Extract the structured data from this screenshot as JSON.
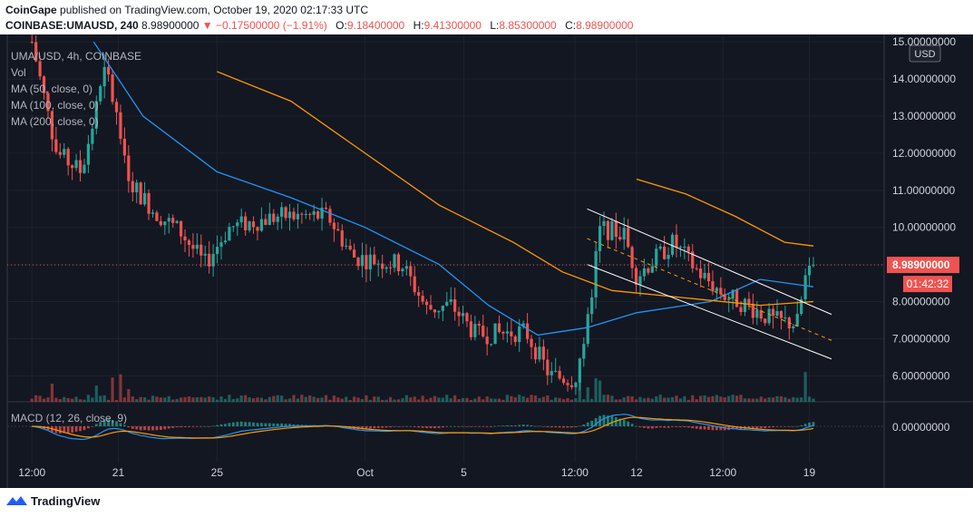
{
  "header": {
    "publisher": "CoinGape",
    "published_text": "published on TradingView.com, October 19, 2020 02:17:33 UTC",
    "symbol_line": "COINBASE:UMAUSD, 240",
    "last_price": "8.98900000",
    "change_arrow": "▼",
    "change": "−0.17500000 (−1.91%)",
    "ohlc": {
      "o_label": "O:",
      "o": "9.18400000",
      "h_label": "H:",
      "h": "9.41300000",
      "l_label": "L:",
      "l": "8.85300000",
      "c_label": "C:",
      "c": "8.98900000"
    }
  },
  "legend": {
    "symbol": "UMA/USD, 4h, COINBASE",
    "vol": "Vol",
    "ma50": "MA (50, close, 0)",
    "ma100": "MA (100, close, 0)",
    "ma200": "MA (200, close, 0)",
    "macd": "MACD (12, 26, close, 9)"
  },
  "price_axis": {
    "currency": "USD",
    "last_price_label": "8.98900000",
    "countdown": "01:42:32",
    "macd_zero_label": "0.00000000"
  },
  "footer": {
    "brand": "TradingView"
  },
  "colors": {
    "background": "#131722",
    "up": "#26a69a",
    "down": "#ef5350",
    "ma50": "#2196f3",
    "ma100": "#ff9800",
    "channel": "#ffffff",
    "signal": "#ff9800",
    "macd": "#2196f3"
  },
  "chart_data": {
    "type": "candlestick",
    "symbol": "UMA/USD",
    "timeframe": "4h",
    "exchange": "COINBASE",
    "x_tick_labels": [
      "12:00",
      "21",
      "25",
      "Oct",
      "5",
      "12:00",
      "12",
      "12:00",
      "19"
    ],
    "y_tick_labels": [
      "6.00000000",
      "7.00000000",
      "8.00000000",
      "9.00000000",
      "10.00000000",
      "11.00000000",
      "12.00000000",
      "13.00000000",
      "14.00000000",
      "15.00000000"
    ],
    "ylim": [
      5.3,
      15.2
    ],
    "last_price": 8.989,
    "approximate_close_path": [
      {
        "date": "2020-09-17 12:00",
        "close": 15.0
      },
      {
        "date": "2020-09-18 12:00",
        "close": 12.0
      },
      {
        "date": "2020-09-19 12:00",
        "close": 11.5
      },
      {
        "date": "2020-09-20 12:00",
        "close": 14.3
      },
      {
        "date": "2020-09-21 12:00",
        "close": 11.2
      },
      {
        "date": "2020-09-22 12:00",
        "close": 10.4
      },
      {
        "date": "2020-09-23 12:00",
        "close": 9.9
      },
      {
        "date": "2020-09-24 12:00",
        "close": 9.0
      },
      {
        "date": "2020-09-25 12:00",
        "close": 10.0
      },
      {
        "date": "2020-09-27 12:00",
        "close": 10.3
      },
      {
        "date": "2020-09-29 12:00",
        "close": 10.3
      },
      {
        "date": "2020-09-30 12:00",
        "close": 9.2
      },
      {
        "date": "2020-10-02 12:00",
        "close": 9.0
      },
      {
        "date": "2020-10-03 12:00",
        "close": 7.8
      },
      {
        "date": "2020-10-04 12:00",
        "close": 7.9
      },
      {
        "date": "2020-10-05 12:00",
        "close": 7.1
      },
      {
        "date": "2020-10-07 12:00",
        "close": 7.2
      },
      {
        "date": "2020-10-08 12:00",
        "close": 6.0
      },
      {
        "date": "2020-10-09 12:00",
        "close": 5.9
      },
      {
        "date": "2020-10-10 00:00",
        "close": 7.3
      },
      {
        "date": "2020-10-10 12:00",
        "close": 10.0
      },
      {
        "date": "2020-10-11 12:00",
        "close": 9.8
      },
      {
        "date": "2020-10-12 00:00",
        "close": 8.7
      },
      {
        "date": "2020-10-13 12:00",
        "close": 9.6
      },
      {
        "date": "2020-10-14 12:00",
        "close": 8.8
      },
      {
        "date": "2020-10-15 12:00",
        "close": 8.2
      },
      {
        "date": "2020-10-16 12:00",
        "close": 7.9
      },
      {
        "date": "2020-10-17 12:00",
        "close": 7.5
      },
      {
        "date": "2020-10-18 12:00",
        "close": 7.4
      },
      {
        "date": "2020-10-19 00:00",
        "close": 9.2
      },
      {
        "date": "2020-10-19 04:00",
        "close": 8.989
      }
    ],
    "ma50": [
      {
        "date": "2020-09-20 00:00",
        "value": 15.0
      },
      {
        "date": "2020-09-22 00:00",
        "value": 13.0
      },
      {
        "date": "2020-09-25 00:00",
        "value": 11.5
      },
      {
        "date": "2020-09-28 00:00",
        "value": 10.8
      },
      {
        "date": "2020-10-01 00:00",
        "value": 10.0
      },
      {
        "date": "2020-10-04 00:00",
        "value": 9.0
      },
      {
        "date": "2020-10-06 00:00",
        "value": 7.9
      },
      {
        "date": "2020-10-08 00:00",
        "value": 7.1
      },
      {
        "date": "2020-10-10 00:00",
        "value": 7.3
      },
      {
        "date": "2020-10-12 00:00",
        "value": 7.7
      },
      {
        "date": "2020-10-15 00:00",
        "value": 8.0
      },
      {
        "date": "2020-10-17 00:00",
        "value": 8.6
      },
      {
        "date": "2020-10-19 04:00",
        "value": 8.4
      }
    ],
    "ma100": [
      {
        "date": "2020-09-25 00:00",
        "value": 14.2
      },
      {
        "date": "2020-09-28 00:00",
        "value": 13.4
      },
      {
        "date": "2020-10-01 00:00",
        "value": 12.0
      },
      {
        "date": "2020-10-04 00:00",
        "value": 10.6
      },
      {
        "date": "2020-10-07 00:00",
        "value": 9.6
      },
      {
        "date": "2020-10-09 00:00",
        "value": 8.8
      },
      {
        "date": "2020-10-11 00:00",
        "value": 8.3
      },
      {
        "date": "2020-10-14 00:00",
        "value": 8.1
      },
      {
        "date": "2020-10-17 00:00",
        "value": 7.9
      },
      {
        "date": "2020-10-19 04:00",
        "value": 8.0
      }
    ],
    "ma200": [
      {
        "date": "2020-10-12 00:00",
        "value": 11.3
      },
      {
        "date": "2020-10-14 00:00",
        "value": 10.9
      },
      {
        "date": "2020-10-16 00:00",
        "value": 10.3
      },
      {
        "date": "2020-10-18 00:00",
        "value": 9.6
      },
      {
        "date": "2020-10-19 04:00",
        "value": 9.5
      }
    ],
    "descending_channel": {
      "upper": [
        {
          "date": "2020-10-10 00:00",
          "value": 10.5
        },
        {
          "date": "2020-10-19 04:00",
          "value": 7.9
        }
      ],
      "middle": [
        {
          "date": "2020-10-10 00:00",
          "value": 9.7
        },
        {
          "date": "2020-10-19 04:00",
          "value": 7.2
        }
      ],
      "lower": [
        {
          "date": "2020-10-10 00:00",
          "value": 9.0
        },
        {
          "date": "2020-10-19 04:00",
          "value": 6.7
        }
      ]
    },
    "indicators": [
      "Vol",
      "MA (50, close, 0)",
      "MA (100, close, 0)",
      "MA (200, close, 0)",
      "MACD (12, 26, close, 9)"
    ],
    "grid": true
  }
}
